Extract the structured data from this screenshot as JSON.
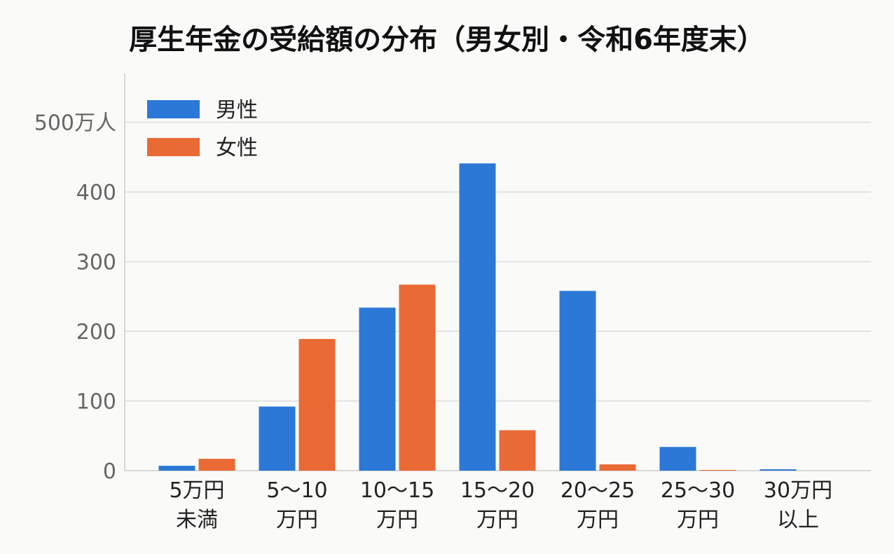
{
  "chart_data": {
    "type": "bar",
    "title": "厚生年金の受給額の分布（男女別・令和6年度末）",
    "categories": [
      [
        "5万円",
        "未満"
      ],
      [
        "5～10",
        "万円"
      ],
      [
        "10～15",
        "万円"
      ],
      [
        "15～20",
        "万円"
      ],
      [
        "20～25",
        "万円"
      ],
      [
        "25～30",
        "万円"
      ],
      [
        "30万円",
        "以上"
      ]
    ],
    "series": [
      {
        "name": "男性",
        "color": "#2b78d6",
        "values": [
          7,
          92,
          234,
          441,
          258,
          34,
          2
        ]
      },
      {
        "name": "女性",
        "color": "#e96a35",
        "values": [
          17,
          189,
          267,
          58,
          9,
          1,
          0
        ]
      }
    ],
    "y_ticks": [
      "0",
      "100",
      "200",
      "300",
      "400",
      "500万人"
    ],
    "ylim": [
      0,
      570
    ],
    "grid": true,
    "legend_position": "top-left"
  }
}
